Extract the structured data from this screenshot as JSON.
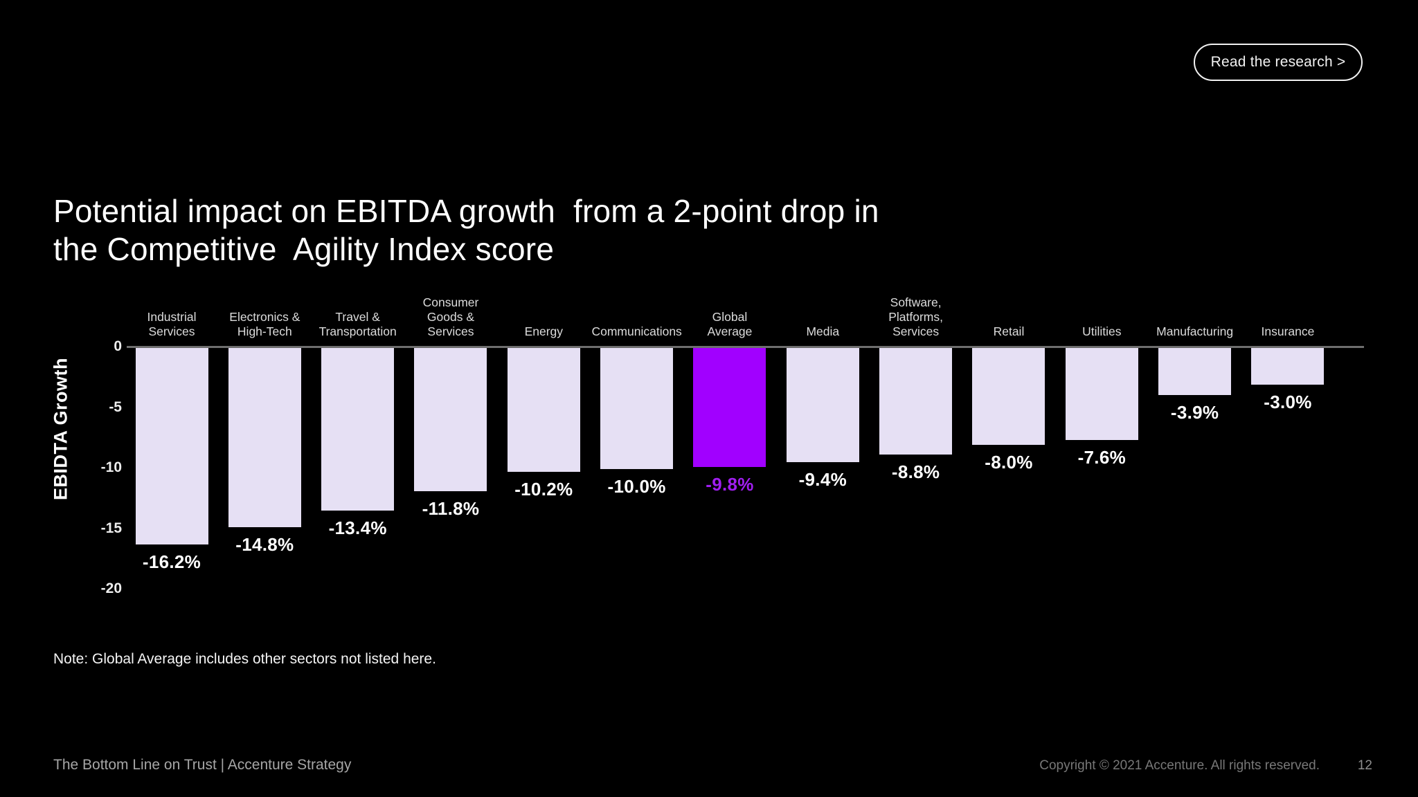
{
  "header": {
    "button_label": "Read the research >"
  },
  "title": "Potential impact on EBITDA growth  from a 2-point drop in\nthe Competitive  Agility Index score",
  "chart_data": {
    "type": "bar",
    "title": "Potential impact on EBITDA growth from a 2-point drop in the Competitive Agility Index score",
    "xlabel": "",
    "ylabel": "EBIDTA Growth",
    "ylim": [
      -20,
      0
    ],
    "yticks": [
      0,
      -5,
      -10,
      -15,
      -20
    ],
    "grid": false,
    "legend": "none",
    "categories": [
      "Industrial\nServices",
      "Electronics &\nHigh-Tech",
      "Travel &\nTransportation",
      "Consumer\nGoods &\nServices",
      "Energy",
      "Communications",
      "Global\nAverage",
      "Media",
      "Software,\nPlatforms,\nServices",
      "Retail",
      "Utilities",
      "Manufacturing",
      "Insurance"
    ],
    "values": [
      -16.2,
      -14.8,
      -13.4,
      -11.8,
      -10.2,
      -10.0,
      -9.8,
      -9.4,
      -8.8,
      -8.0,
      -7.6,
      -3.9,
      -3.0
    ],
    "value_labels": [
      "-16.2%",
      "-14.8%",
      "-13.4%",
      "-11.8%",
      "-10.2%",
      "-10.0%",
      "-9.8%",
      "-9.4%",
      "-8.8%",
      "-8.0%",
      "-7.6%",
      "-3.9%",
      "-3.0%"
    ],
    "highlight_index": 6,
    "colors": {
      "bar_fill": "#e6e0f4",
      "highlight_fill": "#a100ff",
      "highlight_label": "#a01ef0",
      "value_label": "#ffffff",
      "category_label": "#dcdcdc",
      "axis_line": "#6e6e6e",
      "background": "#000000"
    }
  },
  "note": "Note: Global Average includes other sectors not listed here.",
  "footer": {
    "left": "The Bottom Line on Trust | Accenture Strategy",
    "copyright": "Copyright © 2021 Accenture. All rights reserved.",
    "page_number": "12"
  }
}
